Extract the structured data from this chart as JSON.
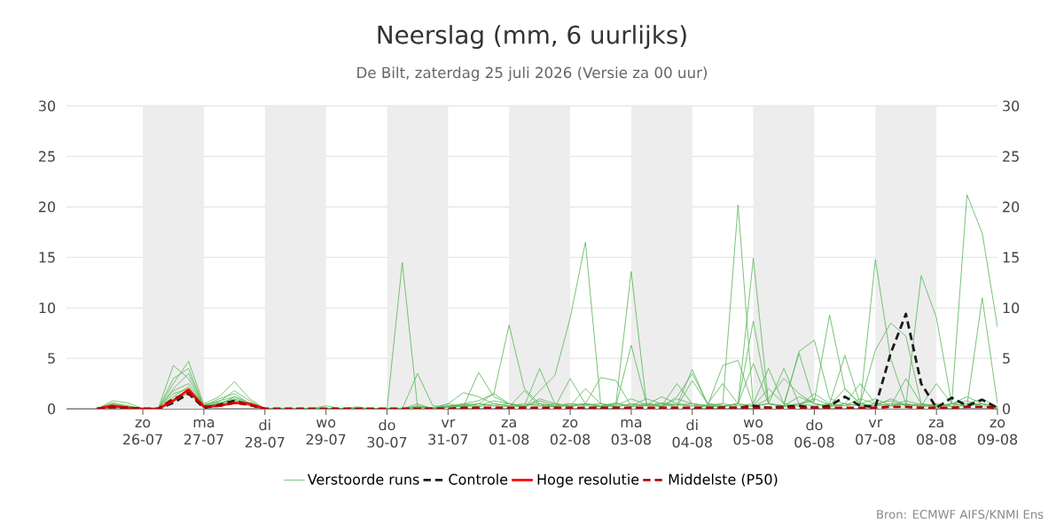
{
  "chart_data": {
    "type": "line",
    "title": "Neerslag (mm, 6 uurlijks)",
    "subtitle": "De Bilt, zaterdag 25 juli 2026 (Versie za 00 uur)",
    "annotations": [
      "Bron: ECMWF AIFS/KNMI Ens"
    ],
    "x": [
      "2026-07-25T06:00",
      "2026-07-25T12:00",
      "2026-07-25T18:00",
      "2026-07-26T00:00",
      "2026-07-26T06:00",
      "2026-07-26T12:00",
      "2026-07-26T18:00",
      "2026-07-27T00:00",
      "2026-07-27T06:00",
      "2026-07-27T12:00",
      "2026-07-27T18:00",
      "2026-07-28T00:00",
      "2026-07-28T06:00",
      "2026-07-28T12:00",
      "2026-07-28T18:00",
      "2026-07-29T00:00",
      "2026-07-29T06:00",
      "2026-07-29T12:00",
      "2026-07-29T18:00",
      "2026-07-30T00:00",
      "2026-07-30T06:00",
      "2026-07-30T12:00",
      "2026-07-30T18:00",
      "2026-07-31T00:00",
      "2026-07-31T06:00",
      "2026-07-31T12:00",
      "2026-07-31T18:00",
      "2026-08-01T00:00",
      "2026-08-01T06:00",
      "2026-08-01T12:00",
      "2026-08-01T18:00",
      "2026-08-02T00:00",
      "2026-08-02T06:00",
      "2026-08-02T12:00",
      "2026-08-02T18:00",
      "2026-08-03T00:00",
      "2026-08-03T06:00",
      "2026-08-03T12:00",
      "2026-08-03T18:00",
      "2026-08-04T00:00",
      "2026-08-04T06:00",
      "2026-08-04T12:00",
      "2026-08-04T18:00",
      "2026-08-05T00:00",
      "2026-08-05T06:00",
      "2026-08-05T12:00",
      "2026-08-05T18:00",
      "2026-08-06T00:00",
      "2026-08-06T06:00",
      "2026-08-06T12:00",
      "2026-08-06T18:00",
      "2026-08-07T00:00",
      "2026-08-07T06:00",
      "2026-08-07T12:00",
      "2026-08-07T18:00",
      "2026-08-08T00:00",
      "2026-08-08T06:00",
      "2026-08-08T12:00",
      "2026-08-08T18:00",
      "2026-08-09T00:00"
    ],
    "xlim": [
      "2026-07-24T18:00",
      "2026-08-09T00:00"
    ],
    "xticks": [
      {
        "value": "2026-07-26",
        "label": "zo 26-07"
      },
      {
        "value": "2026-07-27",
        "label": "ma 27-07"
      },
      {
        "value": "2026-07-28",
        "label": "di 28-07"
      },
      {
        "value": "2026-07-29",
        "label": "wo 29-07"
      },
      {
        "value": "2026-07-30",
        "label": "do 30-07"
      },
      {
        "value": "2026-07-31",
        "label": "vr 31-07"
      },
      {
        "value": "2026-08-01",
        "label": "za 01-08"
      },
      {
        "value": "2026-08-02",
        "label": "zo 02-08"
      },
      {
        "value": "2026-08-03",
        "label": "ma 03-08"
      },
      {
        "value": "2026-08-04",
        "label": "di 04-08"
      },
      {
        "value": "2026-08-05",
        "label": "wo 05-08"
      },
      {
        "value": "2026-08-06",
        "label": "do 06-08"
      },
      {
        "value": "2026-08-07",
        "label": "vr 07-08"
      },
      {
        "value": "2026-08-08",
        "label": "za 08-08"
      },
      {
        "value": "2026-08-09",
        "label": "zo 09-08"
      }
    ],
    "ylim": [
      0,
      30
    ],
    "yticks": [
      0,
      5,
      10,
      15,
      20,
      25,
      30
    ],
    "y2lim": [
      0,
      30
    ],
    "y2ticks": [
      0,
      5,
      10,
      15,
      20,
      25,
      30
    ],
    "grid": "y",
    "legend": "bottom",
    "bands": [
      {
        "axis": "x",
        "from": "2026-07-26",
        "to": "2026-07-27",
        "color": "#ededed"
      },
      {
        "axis": "x",
        "from": "2026-07-28",
        "to": "2026-07-29",
        "color": "#ededed"
      },
      {
        "axis": "x",
        "from": "2026-07-30",
        "to": "2026-07-31",
        "color": "#ededed"
      },
      {
        "axis": "x",
        "from": "2026-08-01",
        "to": "2026-08-02",
        "color": "#ededed"
      },
      {
        "axis": "x",
        "from": "2026-08-03",
        "to": "2026-08-04",
        "color": "#ededed"
      },
      {
        "axis": "x",
        "from": "2026-08-05",
        "to": "2026-08-06",
        "color": "#ededed"
      },
      {
        "axis": "x",
        "from": "2026-08-07",
        "to": "2026-08-08",
        "color": "#ededed"
      }
    ],
    "series": [
      {
        "name": "Verstoorde runs",
        "color": "#5cb85c",
        "values": [
          0,
          0.5,
          0.3,
          0,
          0,
          4.3,
          3.0,
          0.3,
          1.0,
          1.5,
          0.5,
          0,
          0,
          0,
          0,
          0,
          0,
          0,
          0,
          0,
          14.5,
          0.2,
          0,
          0.5,
          1.6,
          1.2,
          0.5,
          0.3,
          0.2,
          1.0,
          0.5,
          0.3,
          2.0,
          0.5,
          0.3,
          1.0,
          0.4,
          0.2,
          1.2,
          3.5,
          0.5,
          2.5,
          0.5,
          0.2,
          1.0,
          3.0,
          1.5,
          0.5,
          0.3,
          2.0,
          0.5,
          0.3,
          1.0,
          0.4,
          0.3,
          2.5,
          0.5,
          1.2,
          0.5,
          0.2
        ]
      },
      {
        "color": "#5cb85c",
        "values": [
          0,
          0.3,
          0.2,
          0,
          0,
          2.5,
          4.7,
          0.4,
          0.8,
          1.2,
          0.6,
          0,
          0,
          0,
          0,
          0.3,
          0,
          0,
          0,
          0,
          0,
          0.5,
          0,
          0.2,
          0.5,
          0.8,
          1.5,
          0.5,
          0.1,
          1.8,
          3.3,
          9.0,
          16.5,
          0.5,
          0.3,
          6.3,
          0.5,
          0.3,
          1.0,
          0.5,
          0.3,
          4.3,
          4.8,
          0.3,
          2.0,
          0.5,
          0.3,
          1.5,
          0.5,
          0.3,
          1.0,
          0.5,
          0.3,
          0.8,
          0.4,
          0.2,
          0.5,
          0.8,
          0.3,
          0.1
        ]
      },
      {
        "color": "#5cb85c",
        "values": [
          0,
          0.8,
          0.6,
          0,
          0,
          1.5,
          2.0,
          0.5,
          1.2,
          2.7,
          1.0,
          0,
          0,
          0,
          0,
          0,
          0,
          0.2,
          0,
          0,
          0,
          0.3,
          0.1,
          0.5,
          0.2,
          3.6,
          1.2,
          0.5,
          0.3,
          0.5,
          0.2,
          3.0,
          0.5,
          0.2,
          0.5,
          13.6,
          0.5,
          0.3,
          0.4,
          0.3,
          0.2,
          0.5,
          20.2,
          0.3,
          0.5,
          4.0,
          0.5,
          1.0,
          0.4,
          0.3,
          0.5,
          1.0,
          0.3,
          0.5,
          0.2,
          0.4,
          0.3,
          0.5,
          1.0,
          0.2
        ]
      },
      {
        "color": "#5cb85c",
        "values": [
          0,
          0.2,
          0.1,
          0,
          0,
          1.0,
          1.5,
          0.2,
          0.5,
          0.8,
          0.3,
          0,
          0,
          0,
          0,
          0,
          0,
          0,
          0,
          0,
          0,
          0,
          0,
          0.3,
          0.2,
          0.5,
          0.3,
          0.2,
          1.8,
          0.3,
          0.2,
          0.3,
          0.5,
          3.1,
          2.8,
          0.3,
          1.0,
          0.5,
          0.4,
          0.5,
          0.3,
          0.2,
          0.5,
          14.9,
          0.5,
          0.3,
          1.2,
          0.5,
          0.3,
          0.5,
          0.3,
          14.8,
          5.0,
          0.5,
          0.3,
          0.5,
          0.2,
          0.3,
          0.5,
          0.2
        ]
      },
      {
        "color": "#5cb85c",
        "values": [
          0,
          0.4,
          0.2,
          0,
          0,
          2.0,
          3.5,
          0.3,
          0.6,
          1.0,
          0.5,
          0,
          0,
          0,
          0,
          0,
          0,
          0,
          0,
          0,
          0,
          0.2,
          0,
          0.3,
          0.4,
          0.5,
          1.5,
          8.3,
          2.0,
          0.5,
          0.3,
          0.5,
          0.4,
          0.5,
          0.2,
          0.5,
          0.3,
          0.5,
          0.2,
          2.8,
          0.5,
          0.3,
          0.5,
          4.5,
          0.5,
          0.3,
          0.5,
          0.8,
          9.3,
          2.0,
          0.5,
          0.3,
          0.5,
          0.4,
          13.2,
          9.0,
          0.5,
          0.3,
          0.5,
          0.2
        ]
      },
      {
        "color": "#5cb85c",
        "values": [
          0,
          0.3,
          0.1,
          0,
          0,
          1.8,
          2.5,
          0.4,
          0.7,
          1.8,
          0.8,
          0,
          0,
          0,
          0,
          0,
          0,
          0,
          0,
          0,
          0,
          0.2,
          0.1,
          0.2,
          0.3,
          0.2,
          0.5,
          0.3,
          0.5,
          0.3,
          0.5,
          0.2,
          0.5,
          0.3,
          0.6,
          0.2,
          0.4,
          1.2,
          0.5,
          0.3,
          0.4,
          0.5,
          0.3,
          0.5,
          4.0,
          0.5,
          5.5,
          0.5,
          0.2,
          0.5,
          0.3,
          0.5,
          0.8,
          0.3,
          0.5,
          0.2,
          0.5,
          21.2,
          17.4,
          8.1
        ]
      },
      {
        "color": "#5cb85c",
        "values": [
          0,
          0.6,
          0.3,
          0,
          0,
          3.0,
          4.0,
          0.2,
          0.4,
          1.2,
          0.5,
          0,
          0,
          0,
          0,
          0,
          0,
          0,
          0,
          0,
          0,
          0,
          0,
          0.2,
          0.3,
          0.5,
          0.3,
          0.5,
          0.2,
          0.8,
          0.3,
          0.5,
          0.3,
          0.2,
          0.5,
          0.3,
          0.5,
          0.3,
          2.5,
          0.5,
          0.3,
          0.2,
          0.5,
          8.7,
          0.5,
          0.3,
          5.7,
          6.8,
          1.0,
          0.5,
          2.5,
          0.5,
          0.3,
          3.0,
          0.5,
          0.2,
          0.5,
          0.3,
          11.0,
          0.5
        ]
      },
      {
        "color": "#5cb85c",
        "values": [
          0,
          0.2,
          0.1,
          0,
          0,
          1.2,
          2.2,
          0.3,
          0.5,
          0.9,
          0.4,
          0,
          0,
          0,
          0,
          0,
          0,
          0,
          0,
          0,
          0,
          3.5,
          0.3,
          0.2,
          0.5,
          0.3,
          0.8,
          0.5,
          0.3,
          4.0,
          0.5,
          0.3,
          0.5,
          0.3,
          0.2,
          0.5,
          0.3,
          0.6,
          0.4,
          3.9,
          0.5,
          0.3,
          0.5,
          0.3,
          0.5,
          0.2,
          0.5,
          0.3,
          0.5,
          5.3,
          0.5,
          5.8,
          8.5,
          7.2,
          0.5,
          0.3,
          0.5,
          0.3,
          0.5,
          0.2
        ]
      },
      {
        "name": "Controle",
        "color": "#1a1a1a",
        "line_style": "dashed",
        "values": [
          0,
          0.2,
          0.1,
          0,
          0,
          0.6,
          1.5,
          0.1,
          0.4,
          0.8,
          0.4,
          0,
          0,
          0,
          0,
          0,
          0,
          0,
          0,
          0,
          0,
          0,
          0,
          0,
          0,
          0,
          0,
          0,
          0,
          0,
          0,
          0,
          0,
          0,
          0,
          0,
          0,
          0,
          0,
          0,
          0,
          0.1,
          0.1,
          0.3,
          0.1,
          0.2,
          0.3,
          0.1,
          0.3,
          1.2,
          0.3,
          0.2,
          5.5,
          9.4,
          2.5,
          0.1,
          1.1,
          0.3,
          0.9,
          0.1
        ]
      },
      {
        "name": "Hoge resolutie",
        "color": "#ff0000",
        "line_style": "solid",
        "values": [
          0,
          0.3,
          0.1,
          0,
          0,
          0.8,
          1.9,
          0.2,
          0.3,
          0.6,
          0.5,
          0,
          null,
          null,
          null,
          null,
          null,
          null,
          null,
          null,
          null,
          null,
          null,
          null,
          null,
          null,
          null,
          null,
          null,
          null,
          null,
          null,
          null,
          null,
          null,
          null,
          null,
          null,
          null,
          null,
          null,
          null,
          null,
          null,
          null,
          null,
          null,
          null,
          null,
          null,
          null,
          null,
          null,
          null,
          null,
          null,
          null,
          null,
          null,
          null
        ]
      },
      {
        "name": "Middelste (P50)",
        "color": "#b30000",
        "line_style": "dashed",
        "values": [
          0,
          0.2,
          0.1,
          0,
          0,
          1.0,
          1.6,
          0.2,
          0.3,
          0.6,
          0.4,
          0,
          0,
          0,
          0,
          0,
          0,
          0,
          0,
          0,
          0,
          0,
          0,
          0,
          0.1,
          0.1,
          0.1,
          0.1,
          0.1,
          0.1,
          0.1,
          0.1,
          0.1,
          0.1,
          0.1,
          0.1,
          0.1,
          0.1,
          0.1,
          0.1,
          0.1,
          0.1,
          0.1,
          0.1,
          0.1,
          0.1,
          0.1,
          0.1,
          0.1,
          0.1,
          0.1,
          0.1,
          0.2,
          0.2,
          0.1,
          0.1,
          0.1,
          0.2,
          0.2,
          0.1
        ]
      }
    ]
  }
}
